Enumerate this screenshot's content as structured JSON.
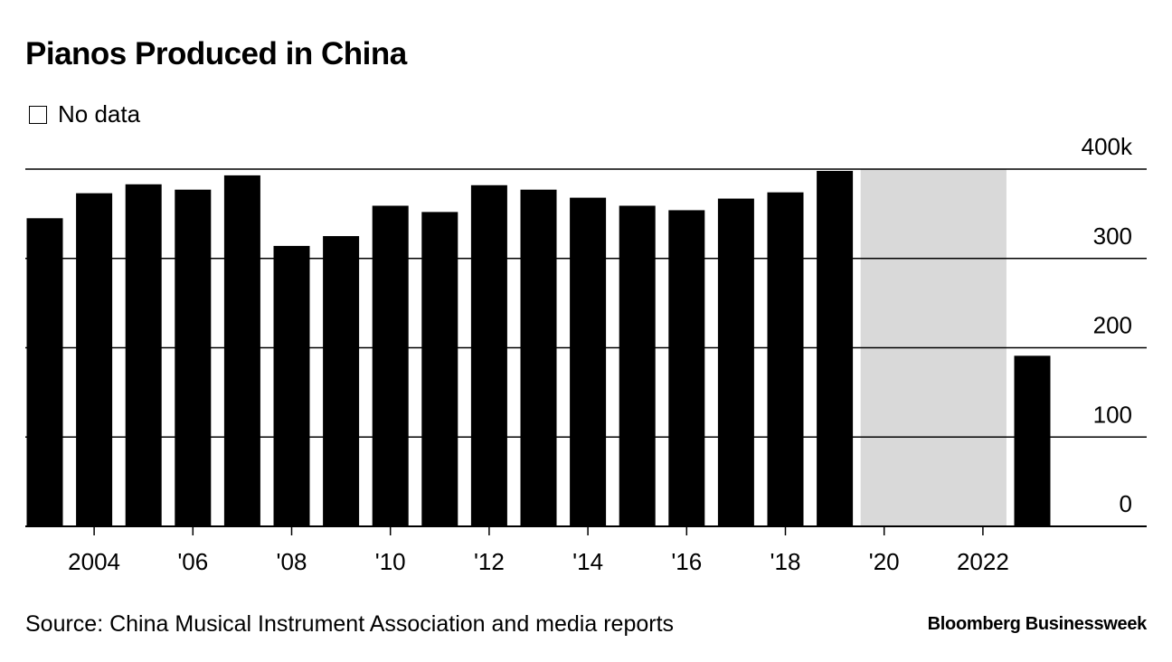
{
  "title": "Pianos Produced in China",
  "legend": {
    "no_data_label": "No data",
    "no_data_color": "#d9d9d9"
  },
  "source": "Source: China Musical Instrument Association and media reports",
  "brand": "Bloomberg Businessweek",
  "colors": {
    "bar": "#000000",
    "gridline": "#000000",
    "no_data": "#d9d9d9"
  },
  "chart_data": {
    "type": "bar",
    "title": "Pianos Produced in China",
    "xlabel": "",
    "ylabel": "",
    "unit": "k",
    "ylim": [
      0,
      400
    ],
    "yticks": [
      {
        "value": 0,
        "label": "0"
      },
      {
        "value": 100,
        "label": "100"
      },
      {
        "value": 200,
        "label": "200"
      },
      {
        "value": 300,
        "label": "300"
      },
      {
        "value": 400,
        "label": "400k"
      }
    ],
    "categories": [
      2003,
      2004,
      2005,
      2006,
      2007,
      2008,
      2009,
      2010,
      2011,
      2012,
      2013,
      2014,
      2015,
      2016,
      2017,
      2018,
      2019,
      2020,
      2021,
      2022,
      2023
    ],
    "values": [
      345,
      373,
      383,
      377,
      393,
      314,
      325,
      359,
      352,
      382,
      377,
      368,
      359,
      354,
      367,
      374,
      398,
      null,
      null,
      null,
      191
    ],
    "xticks": [
      {
        "year": 2004,
        "label": "2004"
      },
      {
        "year": 2006,
        "label": "'06"
      },
      {
        "year": 2008,
        "label": "'08"
      },
      {
        "year": 2010,
        "label": "'10"
      },
      {
        "year": 2012,
        "label": "'12"
      },
      {
        "year": 2014,
        "label": "'14"
      },
      {
        "year": 2016,
        "label": "'16"
      },
      {
        "year": 2018,
        "label": "'18"
      },
      {
        "year": 2020,
        "label": "'20"
      },
      {
        "year": 2022,
        "label": "2022"
      }
    ],
    "no_data_range": [
      2020,
      2022
    ],
    "no_data_label": "No data",
    "legend_position": "top-left",
    "grid": true
  }
}
